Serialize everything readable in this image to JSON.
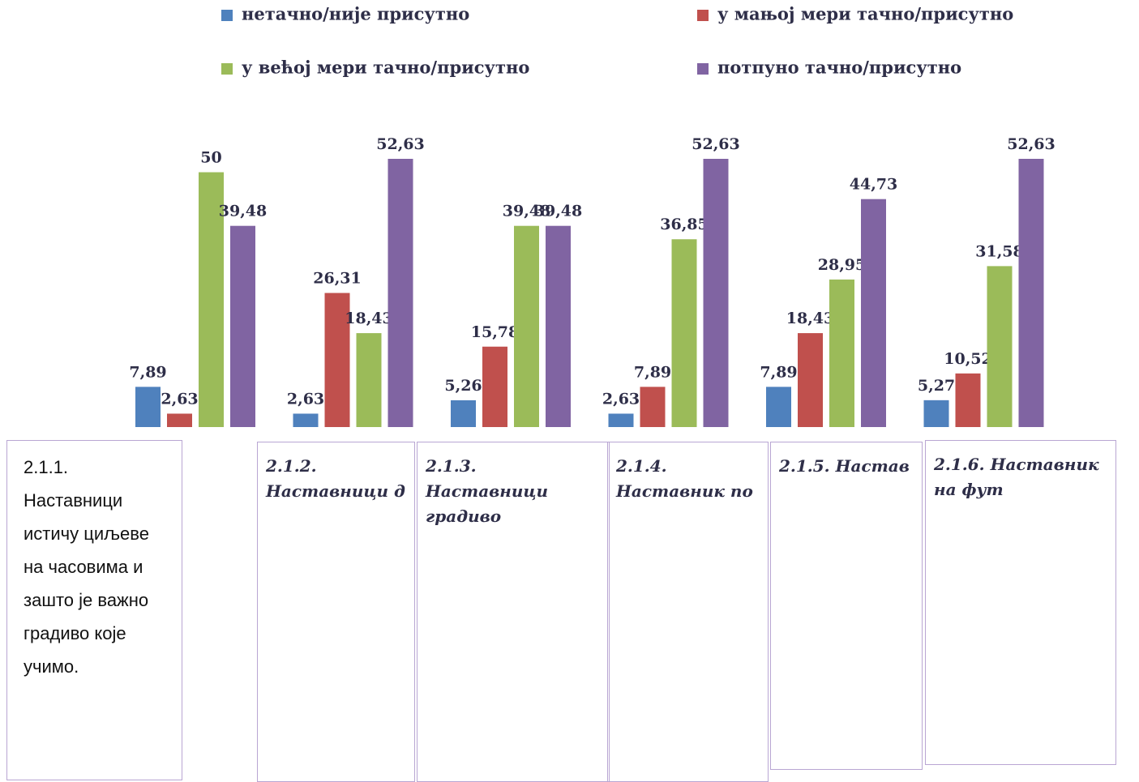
{
  "chart_data": {
    "type": "bar",
    "categories": [
      "2.1.1. Наставници истичу циљеве на часовима и зашто је важно градиво које учимо.",
      "2.1.2. Наставници д",
      "2.1.3. Наставници градиво",
      "2.1.4. Наставник по",
      "2.1.5. Настав",
      "2.1.6. Наставник на фут"
    ],
    "series": [
      {
        "name": "нетачно/није присутно",
        "color": "#4f81bd",
        "values": [
          7.89,
          2.63,
          5.26,
          2.63,
          7.89,
          5.27
        ],
        "value_labels": [
          "7,89",
          "2,63",
          "5,26",
          "2,63",
          "7,89",
          "5,27"
        ]
      },
      {
        "name": "у мањој мери тачно/присутно",
        "color": "#c0504d",
        "values": [
          2.63,
          26.31,
          15.78,
          7.89,
          18.43,
          10.52
        ],
        "value_labels": [
          "2,63",
          "26,31",
          "15,78",
          "7,89",
          "18,43",
          "10,52"
        ]
      },
      {
        "name": "у већој мери тачно/присутно",
        "color": "#9bbb59",
        "values": [
          50,
          18.43,
          39.48,
          36.85,
          28.95,
          31.58
        ],
        "value_labels": [
          "50",
          "18,43",
          "39,48",
          "36,85",
          "28,95",
          "31,58"
        ]
      },
      {
        "name": "потпуно тачно/присутно",
        "color": "#8064a2",
        "values": [
          39.48,
          52.63,
          39.48,
          52.63,
          44.73,
          52.63
        ],
        "value_labels": [
          "39,48",
          "52,63",
          "39,48",
          "52,63",
          "44,73",
          "52,63"
        ]
      }
    ],
    "legend": "top"
  }
}
